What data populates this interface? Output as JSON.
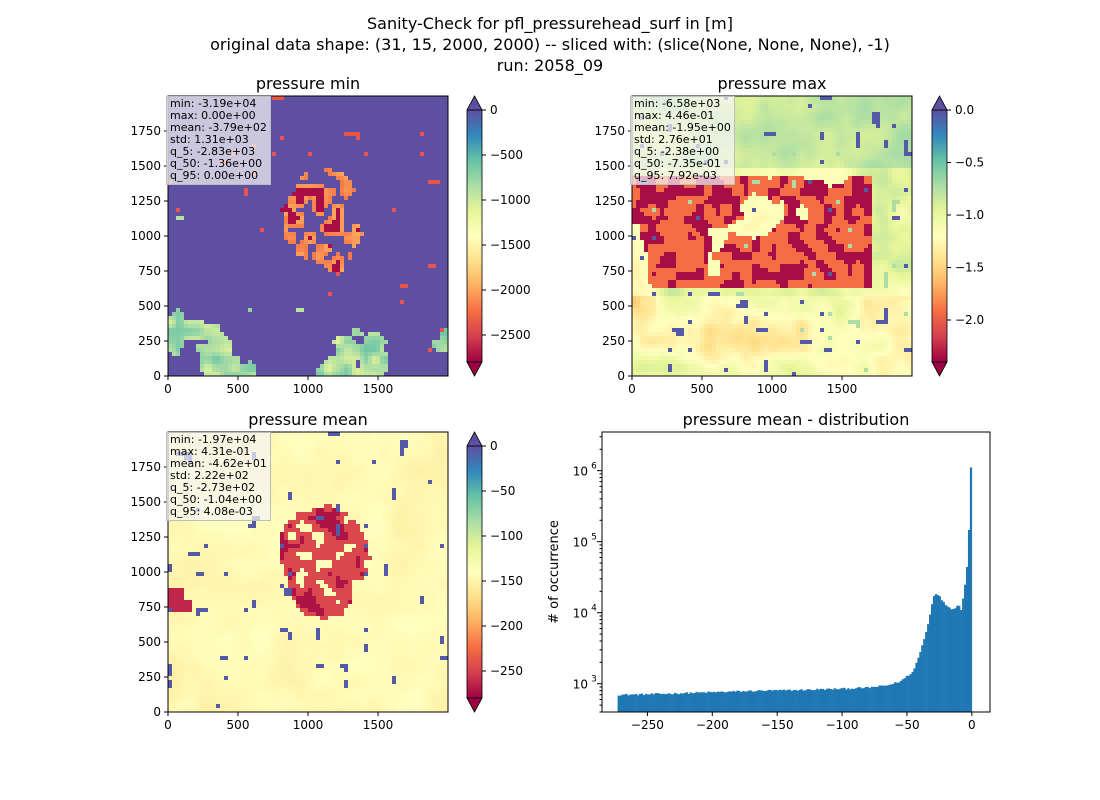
{
  "figure": {
    "title_lines": [
      "Sanity-Check for pfl_pressurehead_surf in [m]",
      "original data shape: (31, 15, 2000, 2000) -- sliced with: (slice(None, None, None), -1)",
      "run: 2058_09"
    ]
  },
  "chart_data": [
    {
      "type": "heatmap",
      "title": "pressure min",
      "x_ticks": [
        0,
        500,
        1000,
        1500
      ],
      "y_ticks": [
        0,
        250,
        500,
        750,
        1000,
        1250,
        1500,
        1750
      ],
      "xlim": [
        0,
        2000
      ],
      "ylim": [
        0,
        2000
      ],
      "colormap": "Spectral",
      "colorbar": {
        "range": [
          -2800,
          0
        ],
        "ticks": [
          0,
          -500,
          -1000,
          -1500,
          -2000,
          -2500
        ],
        "tick_labels": [
          "0",
          "−500",
          "−1000",
          "−1500",
          "−2000",
          "−2500"
        ],
        "extend": "both"
      },
      "stats": [
        "min: -3.19e+04",
        "max: 0.00e+00",
        "mean: -3.79e+02",
        "std: 1.31e+03",
        "q_5: -2.83e+03",
        "q_50: -1.36e+00",
        "q_95: 0.00e+00"
      ]
    },
    {
      "type": "heatmap",
      "title": "pressure max",
      "x_ticks": [
        0,
        500,
        1000,
        1500
      ],
      "y_ticks": [
        0,
        250,
        500,
        750,
        1000,
        1250,
        1500,
        1750
      ],
      "xlim": [
        0,
        2000
      ],
      "ylim": [
        0,
        2000
      ],
      "colormap": "Spectral",
      "colorbar": {
        "range": [
          -2.4,
          0
        ],
        "ticks": [
          0,
          -0.5,
          -1.0,
          -1.5,
          -2.0
        ],
        "tick_labels": [
          "0.0",
          "−0.5",
          "−1.0",
          "−1.5",
          "−2.0"
        ],
        "extend": "both"
      },
      "stats": [
        "min: -6.58e+03",
        "max: 4.46e-01",
        "mean: -1.95e+00",
        "std: 2.76e+01",
        "q_5: -2.38e+00",
        "q_50: -7.35e-01",
        "q_95: 7.92e-03"
      ]
    },
    {
      "type": "heatmap",
      "title": "pressure mean",
      "x_ticks": [
        0,
        500,
        1000,
        1500
      ],
      "y_ticks": [
        0,
        250,
        500,
        750,
        1000,
        1250,
        1500,
        1750
      ],
      "xlim": [
        0,
        2000
      ],
      "ylim": [
        0,
        2000
      ],
      "colormap": "Spectral",
      "colorbar": {
        "range": [
          -280,
          0
        ],
        "ticks": [
          0,
          -50,
          -100,
          -150,
          -200,
          -250
        ],
        "tick_labels": [
          "0",
          "−50",
          "−100",
          "−150",
          "−200",
          "−250"
        ],
        "extend": "both"
      },
      "stats": [
        "min: -1.97e+04",
        "max: 4.31e-01",
        "mean: -4.62e+01",
        "std: 2.22e+02",
        "q_5: -2.73e+02",
        "q_50: -1.04e+00",
        "q_95: 4.08e-03"
      ]
    },
    {
      "type": "bar",
      "title": "pressure mean - distribution",
      "ylabel": "# of occurrence",
      "yscale": "log",
      "ylim": [
        400,
        3500000
      ],
      "xlim": [
        -285,
        14
      ],
      "x_ticks": [
        -250,
        -200,
        -150,
        -100,
        -50,
        0
      ],
      "x_tick_labels": [
        "−250",
        "−200",
        "−150",
        "−100",
        "−50",
        "0"
      ],
      "y_tick_labels": [
        "10^3",
        "10^4",
        "10^5",
        "10^6"
      ],
      "bar_color": "#1f77b4",
      "bin_range": [
        -273,
        0
      ],
      "bin_width": 1.5,
      "knots_x": [
        -273,
        -250,
        -220,
        -200,
        -180,
        -160,
        -140,
        -120,
        -100,
        -80,
        -65,
        -55,
        -45,
        -40,
        -35,
        -32,
        -30,
        -28,
        -26,
        -24,
        -22,
        -20,
        -18,
        -16,
        -14,
        -12,
        -10,
        -8,
        -6,
        -4,
        -3,
        -2,
        -1.5,
        -1,
        -0.5,
        0
      ],
      "knots_y": [
        700,
        710,
        740,
        760,
        780,
        800,
        810,
        830,
        850,
        880,
        950,
        1080,
        1500,
        2700,
        5500,
        10000,
        16000,
        19000,
        18000,
        16000,
        14000,
        13000,
        12000,
        11500,
        11500,
        12000,
        13000,
        11000,
        20000,
        35000,
        90000,
        170000,
        280000,
        800000,
        1500000,
        2300000
      ]
    }
  ]
}
